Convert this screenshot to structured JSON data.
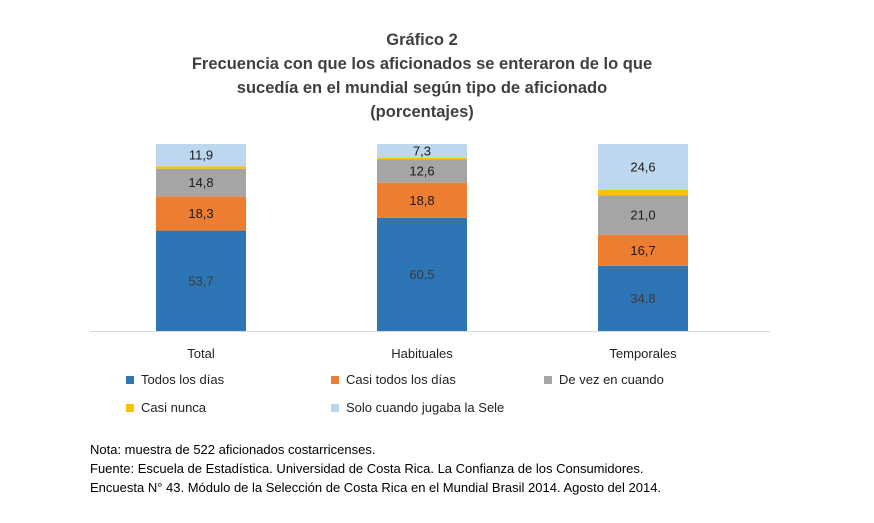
{
  "title_lines": [
    "Gráfico 2",
    "Frecuencia con que los aficionados se enteraron de lo que",
    "sucedía en el mundial según tipo de aficionado",
    "(porcentajes)"
  ],
  "chart_data": {
    "type": "bar",
    "stacked": true,
    "categories": [
      "Total",
      "Habituales",
      "Temporales"
    ],
    "series": [
      {
        "name": "Todos los días",
        "color": "#2E75B6",
        "values": [
          53.7,
          60.5,
          34.8
        ],
        "labels": [
          "53,7",
          "60,5",
          "34,8"
        ]
      },
      {
        "name": "Casi todos los días",
        "color": "#ED7D31",
        "values": [
          18.3,
          18.8,
          16.7
        ],
        "labels": [
          "18,3",
          "18,8",
          "16,7"
        ]
      },
      {
        "name": "De vez en cuando",
        "color": "#A5A5A5",
        "values": [
          14.8,
          12.6,
          21.0
        ],
        "labels": [
          "14,8",
          "12,6",
          "21,0"
        ]
      },
      {
        "name": "Casi nunca",
        "color": "#FFC000",
        "values": [
          1.3,
          0.8,
          2.9
        ],
        "labels": [
          "",
          "",
          ""
        ]
      },
      {
        "name": "Solo cuando jugaba la Sele",
        "color": "#BDD7EE",
        "values": [
          11.9,
          7.3,
          24.6
        ],
        "labels": [
          "11,9",
          "7,3",
          "24,6"
        ]
      }
    ],
    "ylim": [
      0,
      100
    ],
    "grid": false,
    "legend_position": "bottom"
  },
  "notes": [
    "Nota: muestra de 522 aficionados costarricenses.",
    "Fuente: Escuela de Estadística. Universidad de Costa Rica. La Confianza de los Consumidores.",
    "Encuesta N° 43. Módulo de la Selección de Costa Rica en el Mundial Brasil 2014. Agosto del 2014."
  ]
}
